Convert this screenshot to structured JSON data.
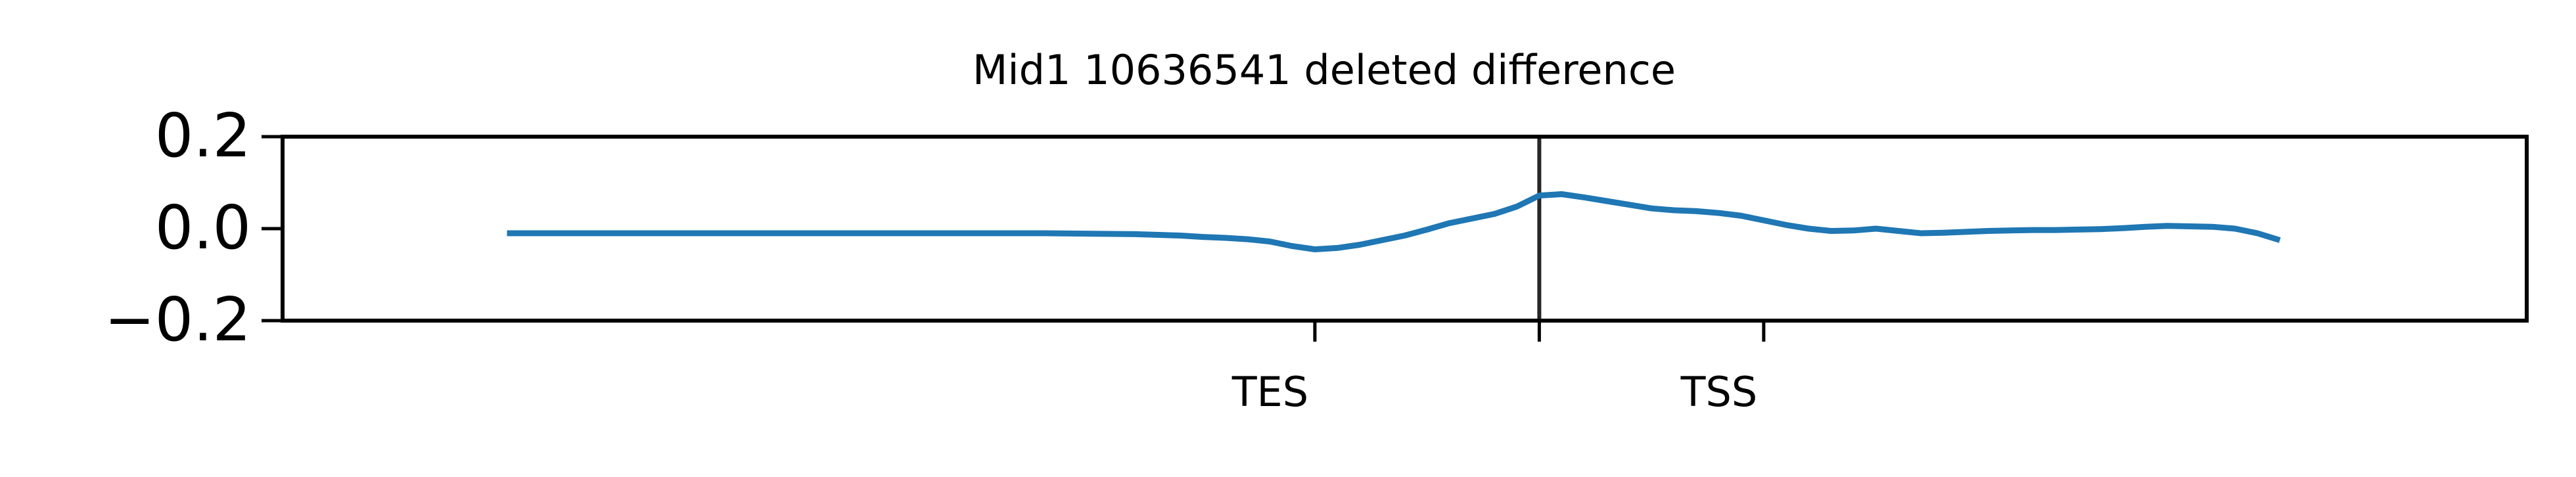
{
  "chart_data": {
    "type": "line",
    "title": "Mid1 10636541 deleted difference",
    "xlabel": "",
    "ylabel": "",
    "ylim": [
      -0.2,
      0.2
    ],
    "yticks": [
      {
        "value": 0.2,
        "label": "0.2"
      },
      {
        "value": 0.0,
        "label": "0.0"
      },
      {
        "value": -0.2,
        "label": "−0.2"
      }
    ],
    "xlim": [
      -10,
      90
    ],
    "xticks": [
      {
        "value": 36,
        "label": "TES"
      },
      {
        "value": 46,
        "label": " "
      },
      {
        "value": 56,
        "label": "TSS"
      }
    ],
    "vline_x": 46,
    "grid": false,
    "legend": "none",
    "series": [
      {
        "color": "#1f77b4",
        "x": [
          0,
          4,
          8,
          12,
          16,
          20,
          24,
          28,
          30,
          31,
          32,
          33,
          34,
          35,
          36,
          37,
          38,
          39,
          40,
          41,
          42,
          43,
          44,
          45,
          46,
          47,
          48,
          49,
          50,
          51,
          52,
          53,
          54,
          55,
          56,
          57,
          58,
          59,
          60,
          61,
          62,
          63,
          64,
          65,
          66,
          67,
          68,
          69,
          70,
          71,
          72,
          73,
          74,
          75,
          76,
          77,
          78,
          79
        ],
        "y": [
          -0.01,
          -0.01,
          -0.01,
          -0.01,
          -0.01,
          -0.01,
          -0.01,
          -0.012,
          -0.015,
          -0.018,
          -0.02,
          -0.023,
          -0.028,
          -0.038,
          -0.045,
          -0.042,
          -0.035,
          -0.025,
          -0.015,
          -0.002,
          0.012,
          0.022,
          0.032,
          0.048,
          0.072,
          0.075,
          0.068,
          0.06,
          0.052,
          0.044,
          0.04,
          0.038,
          0.034,
          0.028,
          0.018,
          0.008,
          0.0,
          -0.005,
          -0.004,
          0.0,
          -0.005,
          -0.01,
          -0.009,
          -0.007,
          -0.005,
          -0.004,
          -0.003,
          -0.003,
          -0.002,
          -0.001,
          0.001,
          0.004,
          0.006,
          0.005,
          0.004,
          0.0,
          -0.01,
          -0.025
        ]
      }
    ]
  }
}
